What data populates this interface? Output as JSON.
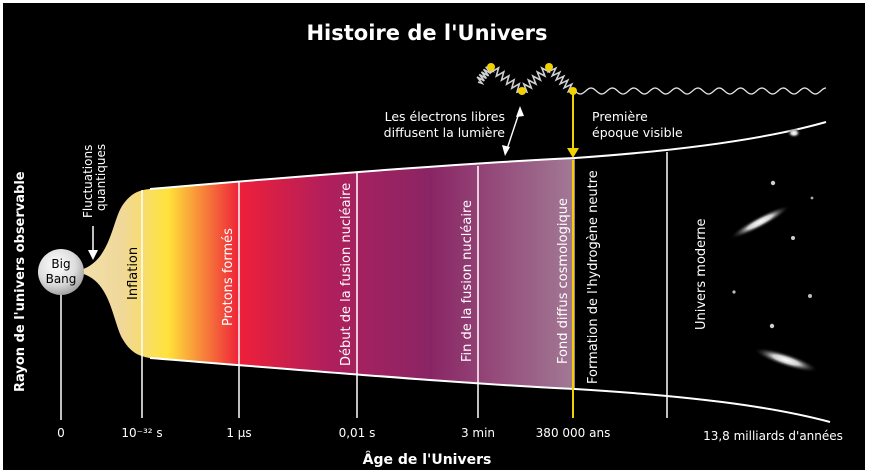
{
  "title": "Histoire de l'Univers",
  "axes": {
    "x_label": "Âge de l'Univers",
    "y_label": "Rayon de l'univers observable"
  },
  "big_bang": {
    "line1": "Big",
    "line2": "Bang"
  },
  "fluctuations": {
    "line1": "Fluctuations",
    "line2": "quantiques"
  },
  "photon_note": {
    "scatter_line1": "Les électrons libres",
    "scatter_line2": "diffusent la lumière",
    "first_line1": "Première",
    "first_line2": "époque visible"
  },
  "epochs": [
    {
      "label": "Inflation"
    },
    {
      "label": "Protons formés"
    },
    {
      "label": "Début de la fusion nucléaire"
    },
    {
      "label": "Fin de la fusion nucléaire"
    },
    {
      "label": "Fond diffus cosmologique"
    },
    {
      "label": "Formation de l'hydrogène neutre"
    },
    {
      "label": "Univers moderne"
    }
  ],
  "ticks": [
    "0",
    "10⁻³² s",
    "1 μs",
    "0,01 s",
    "3 min",
    "380 000 ans",
    "13,8 milliards d'années"
  ],
  "colors": {
    "background": "#000000",
    "yellow": "#ffe600",
    "red": "#e8163a",
    "magenta": "#8a2565",
    "mauve": "#9c6e8e",
    "cream": "#f5e6b3",
    "marker": "#f2d100"
  }
}
